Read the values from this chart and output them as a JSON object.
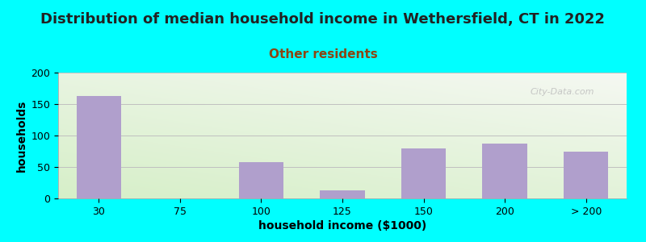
{
  "title": "Distribution of median household income in Wethersfield, CT in 2022",
  "subtitle": "Other residents",
  "xlabel": "household income ($1000)",
  "ylabel": "households",
  "categories": [
    "30",
    "75",
    "100",
    "125",
    "150",
    "200",
    "> 200"
  ],
  "values": [
    163,
    0,
    58,
    13,
    80,
    87,
    75
  ],
  "bar_color": "#b09fcc",
  "background_color": "#00FFFF",
  "gradient_green": [
    214,
    239,
    200
  ],
  "gradient_white": [
    245,
    248,
    242
  ],
  "ylim": [
    0,
    200
  ],
  "yticks": [
    0,
    50,
    100,
    150,
    200
  ],
  "title_fontsize": 13,
  "subtitle_fontsize": 11,
  "subtitle_color": "#8B4513",
  "axis_label_fontsize": 10,
  "tick_fontsize": 9,
  "watermark_text": "City-Data.com"
}
